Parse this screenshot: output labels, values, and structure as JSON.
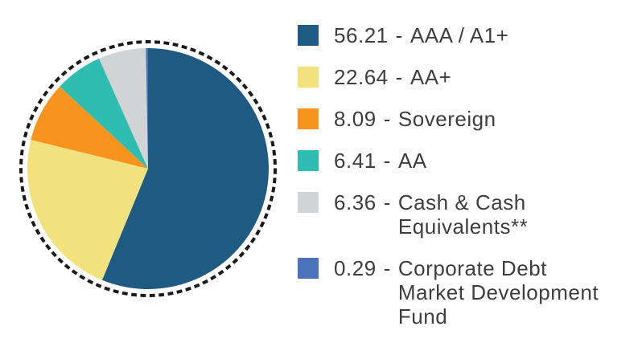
{
  "chart_data": {
    "type": "pie",
    "title": "",
    "start_angle_deg": -90,
    "direction": "clockwise",
    "total": 100,
    "slices": [
      {
        "value": 56.21,
        "label": "AAA / A1+",
        "color": "#1f5a83"
      },
      {
        "value": 22.64,
        "label": "AA+",
        "color": "#f2e27d"
      },
      {
        "value": 8.09,
        "label": "Sovereign",
        "color": "#f6941e"
      },
      {
        "value": 6.41,
        "label": "AA",
        "color": "#2ebdb0"
      },
      {
        "value": 6.36,
        "label": "Cash & Cash\nEquivalents**",
        "color": "#d2d3d4"
      },
      {
        "value": 0.29,
        "label": "Corporate Debt\nMarket Development\nFund",
        "color": "#4a73b9"
      }
    ],
    "legend": {
      "position": "right",
      "separator": "-"
    },
    "outline": {
      "style": "dashed",
      "color": "#1a1a1a"
    }
  }
}
